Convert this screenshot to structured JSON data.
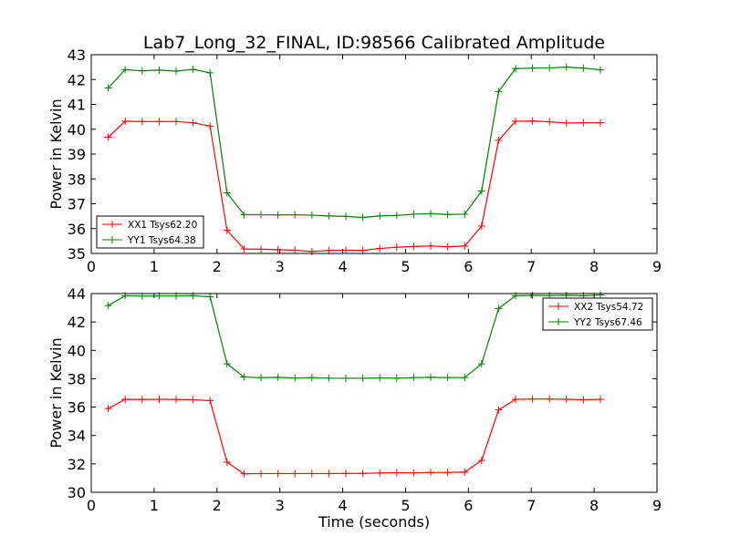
{
  "chart_data": [
    {
      "type": "line",
      "title": "Lab7_Long_32_FINAL, ID:98566 Calibrated Amplitude",
      "xlabel": "",
      "ylabel": "Power in Kelvin",
      "xlim": [
        0,
        9
      ],
      "ylim": [
        35,
        43
      ],
      "xticks": [
        "0",
        "1",
        "2",
        "3",
        "4",
        "5",
        "6",
        "7",
        "8",
        "9"
      ],
      "yticks": [
        "35",
        "36",
        "37",
        "38",
        "39",
        "40",
        "41",
        "42",
        "43"
      ],
      "grid": false,
      "legend_position": "lower-left",
      "x": [
        0.27,
        0.54,
        0.81,
        1.08,
        1.35,
        1.62,
        1.89,
        2.16,
        2.43,
        2.7,
        2.97,
        3.24,
        3.51,
        3.78,
        4.05,
        4.32,
        4.59,
        4.86,
        5.13,
        5.4,
        5.67,
        5.94,
        6.21,
        6.48,
        6.75,
        7.02,
        7.29,
        7.56,
        7.83,
        8.1
      ],
      "series": [
        {
          "name": "XX1 Tsys62.20",
          "color": "#ff0000",
          "marker": "+",
          "values": [
            39.68,
            40.32,
            40.31,
            40.31,
            40.31,
            40.26,
            40.13,
            35.93,
            35.18,
            35.17,
            35.15,
            35.13,
            35.08,
            35.12,
            35.13,
            35.12,
            35.2,
            35.25,
            35.28,
            35.3,
            35.27,
            35.3,
            36.1,
            39.55,
            40.32,
            40.33,
            40.3,
            40.25,
            40.26,
            40.26
          ]
        },
        {
          "name": "YY1 Tsys64.38",
          "color": "#008000",
          "marker": "+",
          "values": [
            41.66,
            42.4,
            42.35,
            42.38,
            42.34,
            42.41,
            42.27,
            37.44,
            36.56,
            36.56,
            36.55,
            36.56,
            36.54,
            36.51,
            36.49,
            36.45,
            36.51,
            36.53,
            36.58,
            36.6,
            36.57,
            36.58,
            37.51,
            41.52,
            42.44,
            42.46,
            42.47,
            42.5,
            42.46,
            42.39
          ]
        }
      ]
    },
    {
      "type": "line",
      "title": "",
      "xlabel": "Time (seconds)",
      "ylabel": "Power in Kelvin",
      "xlim": [
        0,
        9
      ],
      "ylim": [
        30,
        44
      ],
      "xticks": [
        "0",
        "1",
        "2",
        "3",
        "4",
        "5",
        "6",
        "7",
        "8",
        "9"
      ],
      "yticks": [
        "30",
        "32",
        "34",
        "36",
        "38",
        "40",
        "42",
        "44"
      ],
      "grid": false,
      "legend_position": "upper-right",
      "x": [
        0.27,
        0.54,
        0.81,
        1.08,
        1.35,
        1.62,
        1.89,
        2.16,
        2.43,
        2.7,
        2.97,
        3.24,
        3.51,
        3.78,
        4.05,
        4.32,
        4.59,
        4.86,
        5.13,
        5.4,
        5.67,
        5.94,
        6.21,
        6.48,
        6.75,
        7.02,
        7.29,
        7.56,
        7.83,
        8.1
      ],
      "series": [
        {
          "name": "XX2 Tsys54.72",
          "color": "#ff0000",
          "marker": "+",
          "values": [
            35.9,
            36.55,
            36.54,
            36.55,
            36.54,
            36.52,
            36.46,
            32.12,
            31.3,
            31.32,
            31.32,
            31.32,
            31.32,
            31.32,
            31.33,
            31.33,
            31.36,
            31.38,
            31.37,
            31.4,
            31.4,
            31.42,
            32.25,
            35.8,
            36.55,
            36.57,
            36.57,
            36.55,
            36.52,
            36.55
          ]
        },
        {
          "name": "YY2 Tsys67.46",
          "color": "#008000",
          "marker": "+",
          "values": [
            43.15,
            43.85,
            43.82,
            43.83,
            43.83,
            43.85,
            43.78,
            39.05,
            38.12,
            38.08,
            38.1,
            38.05,
            38.08,
            38.04,
            38.03,
            38.03,
            38.06,
            38.04,
            38.08,
            38.1,
            38.08,
            38.08,
            39.05,
            42.95,
            43.85,
            43.87,
            43.86,
            43.88,
            43.85,
            43.9
          ]
        }
      ]
    }
  ]
}
